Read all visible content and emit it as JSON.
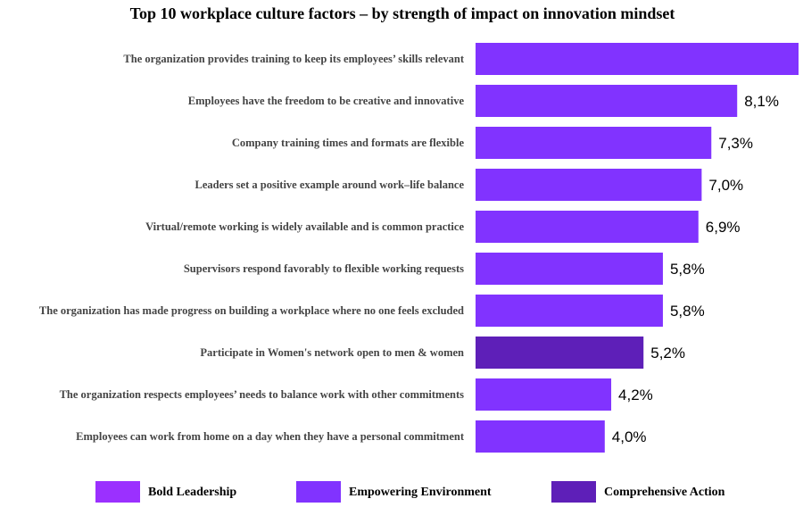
{
  "chart_data": {
    "type": "bar",
    "orientation": "horizontal",
    "title": "Top 10 workplace culture factors – by strength of impact on innovation mindset",
    "categories": [
      "The organization provides training to keep its employees’ skills relevant",
      "Employees have the freedom to be creative and innovative",
      "Company training times and formats are flexible",
      "Leaders set a positive example around work–life balance",
      "Virtual/remote working is widely available and is common practice",
      "Supervisors respond favorably to flexible working requests",
      "The organization has made progress on building a workplace where no one feels excluded",
      "Participate in Women's network open to men & women",
      "The organization respects employees’ needs to balance work with other commitments",
      "Employees can work from home on a day when they have a personal commitment"
    ],
    "values": [
      10.0,
      8.1,
      7.3,
      7.0,
      6.9,
      5.8,
      5.8,
      5.2,
      4.2,
      4.0
    ],
    "value_labels": [
      "",
      "8,1%",
      "7,3%",
      "7,0%",
      "6,9%",
      "5,8%",
      "5,8%",
      "5,2%",
      "4,2%",
      "4,0%"
    ],
    "groups": [
      "Empowering Environment",
      "Empowering Environment",
      "Empowering Environment",
      "Empowering Environment",
      "Empowering Environment",
      "Empowering Environment",
      "Empowering Environment",
      "Comprehensive Action",
      "Empowering Environment",
      "Empowering Environment"
    ],
    "xlim": [
      0,
      10
    ],
    "grid": false,
    "legend": {
      "position": "bottom",
      "entries": [
        {
          "name": "Bold Leadership",
          "color": "#9b30ff"
        },
        {
          "name": "Empowering Environment",
          "color": "#8133ff"
        },
        {
          "name": "Comprehensive Action",
          "color": "#5e1fb8"
        }
      ]
    }
  }
}
